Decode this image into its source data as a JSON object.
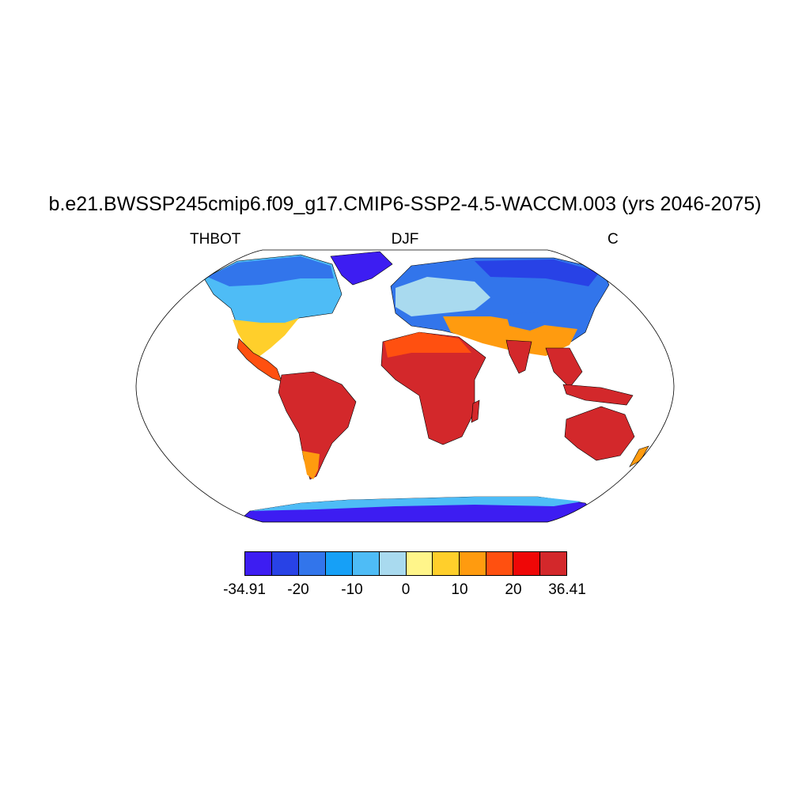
{
  "figure": {
    "title": "b.e21.BWSSP245cmip6.f09_g17.CMIP6-SSP2-4.5-WACCM.003 (yrs 2046-2075)",
    "left_string": "THBOT",
    "center_string": "DJF",
    "right_string": "C"
  },
  "colorbar": {
    "colors": [
      "#3d1df2",
      "#2842e6",
      "#3275eb",
      "#16a0f7",
      "#4ebcf6",
      "#a9daef",
      "#fff58a",
      "#ffcf2b",
      "#ff9b0f",
      "#ff5010",
      "#ef0707",
      "#d3282b"
    ],
    "labels": [
      "-34.91",
      "-20",
      "-10",
      "0",
      "10",
      "20",
      "36.41"
    ]
  },
  "chart_data": {
    "type": "heatmap",
    "projection": "Robinson",
    "variable": "THBOT",
    "season": "DJF",
    "units": "C",
    "color_range": [
      -34.91,
      36.41
    ],
    "grid": false
  }
}
